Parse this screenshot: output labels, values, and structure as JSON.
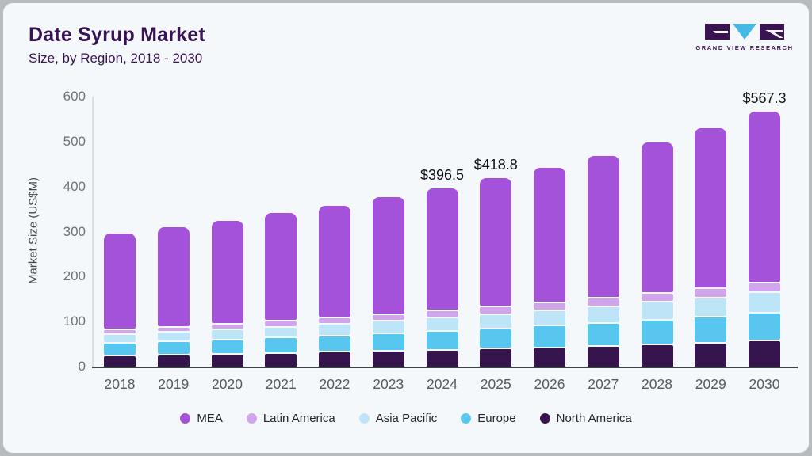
{
  "header": {
    "title": "Date Syrup Market",
    "subtitle": "Size, by Region, 2018 - 2030",
    "brand": "GRAND VIEW RESEARCH"
  },
  "chart_data": {
    "type": "bar",
    "stacked": true,
    "title": "Date Syrup Market",
    "subtitle": "Size, by Region, 2018 - 2030",
    "ylabel": "Market Size (US$M)",
    "xlabel": "",
    "ylim": [
      0,
      600
    ],
    "yticks": [
      0,
      100,
      200,
      300,
      400,
      500,
      600
    ],
    "grid": false,
    "legend_position": "bottom",
    "categories": [
      "2018",
      "2019",
      "2020",
      "2021",
      "2022",
      "2023",
      "2024",
      "2025",
      "2026",
      "2027",
      "2028",
      "2029",
      "2030"
    ],
    "series": [
      {
        "name": "North America",
        "color": "#36144d",
        "values": [
          23,
          25,
          27,
          29,
          31,
          33,
          35,
          38,
          41,
          44,
          47,
          51,
          56
        ]
      },
      {
        "name": "Europe",
        "color": "#58c7f0",
        "values": [
          28,
          29,
          31,
          34,
          36,
          39,
          42,
          45,
          48,
          51,
          55,
          58,
          62
        ]
      },
      {
        "name": "Asia Pacific",
        "color": "#bde5f7",
        "values": [
          20,
          21,
          23,
          24,
          26,
          28,
          30,
          32,
          34,
          37,
          40,
          42,
          45
        ]
      },
      {
        "name": "Latin America",
        "color": "#d0a5ec",
        "values": [
          10,
          11,
          12,
          13,
          14,
          15,
          16,
          17,
          18,
          19,
          20,
          21,
          22
        ]
      },
      {
        "name": "MEA",
        "color": "#a352d9",
        "values": [
          214.4,
          223.5,
          231.6,
          240.7,
          250.9,
          261.4,
          273.5,
          286.8,
          301.3,
          317.5,
          335.4,
          358.0,
          382.3
        ]
      }
    ],
    "totals": [
      295.4,
      309.5,
      324.6,
      340.7,
      357.9,
      376.4,
      396.5,
      418.8,
      442.3,
      468.5,
      497.4,
      530.0,
      567.3
    ],
    "annotations": [
      {
        "category": "2024",
        "label": "$396.5"
      },
      {
        "category": "2025",
        "label": "$418.8"
      },
      {
        "category": "2030",
        "label": "$567.3"
      }
    ],
    "legend": [
      "MEA",
      "Latin America",
      "Asia Pacific",
      "Europe",
      "North America"
    ]
  },
  "logo_colors": {
    "block": "#3a1353",
    "triangle": "#45b9e6"
  }
}
